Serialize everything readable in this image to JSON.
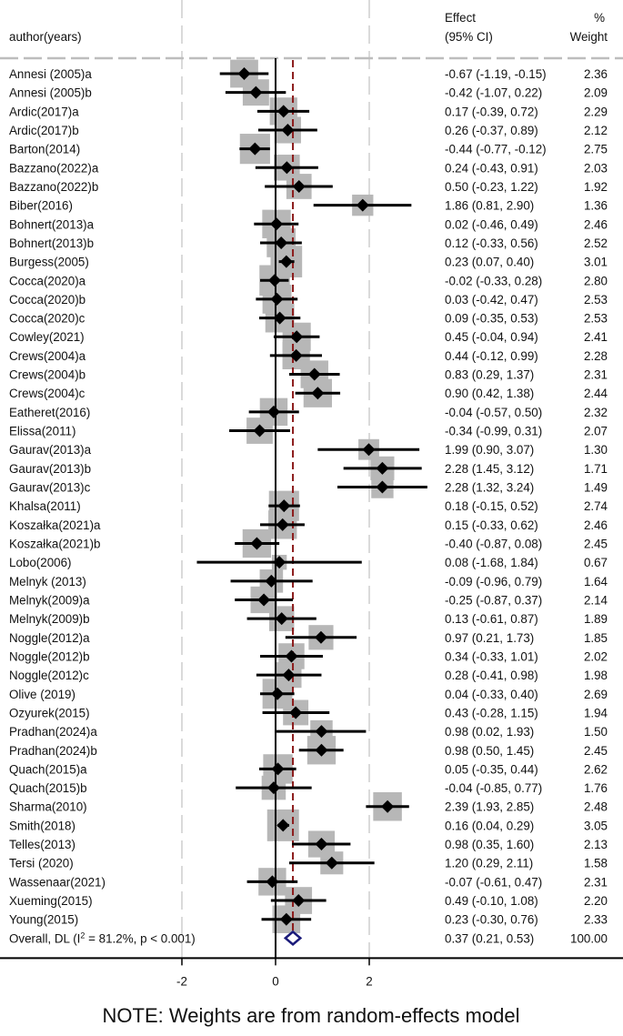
{
  "chart_data": {
    "type": "forest",
    "header": {
      "author": "author(years)",
      "effect": "Effect",
      "ci": "(95% CI)",
      "pct": "%",
      "weight": "Weight"
    },
    "studies": [
      {
        "author": "Annesi (2005)a",
        "est": -0.67,
        "lo": -1.19,
        "hi": -0.15,
        "ci_text": "-0.67 (-1.19, -0.15)",
        "weight": 2.36,
        "weight_text": "2.36"
      },
      {
        "author": "Annesi (2005)b",
        "est": -0.42,
        "lo": -1.07,
        "hi": 0.22,
        "ci_text": "-0.42 (-1.07, 0.22)",
        "weight": 2.09,
        "weight_text": "2.09"
      },
      {
        "author": "Ardic(2017)a",
        "est": 0.17,
        "lo": -0.39,
        "hi": 0.72,
        "ci_text": "0.17 (-0.39, 0.72)",
        "weight": 2.29,
        "weight_text": "2.29"
      },
      {
        "author": "Ardic(2017)b",
        "est": 0.26,
        "lo": -0.37,
        "hi": 0.89,
        "ci_text": "0.26 (-0.37, 0.89)",
        "weight": 2.12,
        "weight_text": "2.12"
      },
      {
        "author": "Barton(2014)",
        "est": -0.44,
        "lo": -0.77,
        "hi": -0.12,
        "ci_text": "-0.44 (-0.77, -0.12)",
        "weight": 2.75,
        "weight_text": "2.75"
      },
      {
        "author": "Bazzano(2022)a",
        "est": 0.24,
        "lo": -0.43,
        "hi": 0.91,
        "ci_text": "0.24 (-0.43, 0.91)",
        "weight": 2.03,
        "weight_text": "2.03"
      },
      {
        "author": "Bazzano(2022)b",
        "est": 0.5,
        "lo": -0.23,
        "hi": 1.22,
        "ci_text": "0.50 (-0.23, 1.22)",
        "weight": 1.92,
        "weight_text": "1.92"
      },
      {
        "author": "Biber(2016)",
        "est": 1.86,
        "lo": 0.81,
        "hi": 2.9,
        "ci_text": "1.86 (0.81, 2.90)",
        "weight": 1.36,
        "weight_text": "1.36"
      },
      {
        "author": "Bohnert(2013)a",
        "est": 0.02,
        "lo": -0.46,
        "hi": 0.49,
        "ci_text": "0.02 (-0.46, 0.49)",
        "weight": 2.46,
        "weight_text": "2.46"
      },
      {
        "author": "Bohnert(2013)b",
        "est": 0.12,
        "lo": -0.33,
        "hi": 0.56,
        "ci_text": "0.12 (-0.33, 0.56)",
        "weight": 2.52,
        "weight_text": "2.52"
      },
      {
        "author": "Burgess(2005)",
        "est": 0.23,
        "lo": 0.07,
        "hi": 0.4,
        "ci_text": "0.23 (0.07, 0.40)",
        "weight": 3.01,
        "weight_text": "3.01"
      },
      {
        "author": "Cocca(2020)a",
        "est": -0.02,
        "lo": -0.33,
        "hi": 0.28,
        "ci_text": "-0.02 (-0.33, 0.28)",
        "weight": 2.8,
        "weight_text": "2.80"
      },
      {
        "author": "Cocca(2020)b",
        "est": 0.03,
        "lo": -0.42,
        "hi": 0.47,
        "ci_text": "0.03 (-0.42, 0.47)",
        "weight": 2.53,
        "weight_text": "2.53"
      },
      {
        "author": "Cocca(2020)c",
        "est": 0.09,
        "lo": -0.35,
        "hi": 0.53,
        "ci_text": "0.09 (-0.35, 0.53)",
        "weight": 2.53,
        "weight_text": "2.53"
      },
      {
        "author": "Cowley(2021)",
        "est": 0.45,
        "lo": -0.04,
        "hi": 0.94,
        "ci_text": "0.45 (-0.04, 0.94)",
        "weight": 2.41,
        "weight_text": "2.41"
      },
      {
        "author": "Crews(2004)a",
        "est": 0.44,
        "lo": -0.12,
        "hi": 0.99,
        "ci_text": "0.44 (-0.12, 0.99)",
        "weight": 2.28,
        "weight_text": "2.28"
      },
      {
        "author": "Crews(2004)b",
        "est": 0.83,
        "lo": 0.29,
        "hi": 1.37,
        "ci_text": "0.83 (0.29, 1.37)",
        "weight": 2.31,
        "weight_text": "2.31"
      },
      {
        "author": "Crews(2004)c",
        "est": 0.9,
        "lo": 0.42,
        "hi": 1.38,
        "ci_text": "0.90 (0.42, 1.38)",
        "weight": 2.44,
        "weight_text": "2.44"
      },
      {
        "author": "Eatheret(2016)",
        "est": -0.04,
        "lo": -0.57,
        "hi": 0.5,
        "ci_text": "-0.04 (-0.57, 0.50)",
        "weight": 2.32,
        "weight_text": "2.32"
      },
      {
        "author": "Elissa(2011)",
        "est": -0.34,
        "lo": -0.99,
        "hi": 0.31,
        "ci_text": "-0.34 (-0.99, 0.31)",
        "weight": 2.07,
        "weight_text": "2.07"
      },
      {
        "author": "Gaurav(2013)a",
        "est": 1.99,
        "lo": 0.9,
        "hi": 3.07,
        "ci_text": "1.99 (0.90, 3.07)",
        "weight": 1.3,
        "weight_text": "1.30"
      },
      {
        "author": "Gaurav(2013)b",
        "est": 2.28,
        "lo": 1.45,
        "hi": 3.12,
        "ci_text": "2.28 (1.45, 3.12)",
        "weight": 1.71,
        "weight_text": "1.71"
      },
      {
        "author": "Gaurav(2013)c",
        "est": 2.28,
        "lo": 1.32,
        "hi": 3.24,
        "ci_text": "2.28 (1.32, 3.24)",
        "weight": 1.49,
        "weight_text": "1.49"
      },
      {
        "author": "Khalsa(2011)",
        "est": 0.18,
        "lo": -0.15,
        "hi": 0.52,
        "ci_text": "0.18 (-0.15, 0.52)",
        "weight": 2.74,
        "weight_text": "2.74"
      },
      {
        "author": "Koszałka(2021)a",
        "est": 0.15,
        "lo": -0.33,
        "hi": 0.62,
        "ci_text": "0.15 (-0.33, 0.62)",
        "weight": 2.46,
        "weight_text": "2.46"
      },
      {
        "author": "Koszałka(2021)b",
        "est": -0.4,
        "lo": -0.87,
        "hi": 0.08,
        "ci_text": "-0.40 (-0.87, 0.08)",
        "weight": 2.45,
        "weight_text": "2.45"
      },
      {
        "author": "Lobo(2006)",
        "est": 0.08,
        "lo": -1.68,
        "hi": 1.84,
        "ci_text": "0.08 (-1.68, 1.84)",
        "weight": 0.67,
        "weight_text": "0.67"
      },
      {
        "author": "Melnyk (2013)",
        "est": -0.09,
        "lo": -0.96,
        "hi": 0.79,
        "ci_text": "-0.09 (-0.96, 0.79)",
        "weight": 1.64,
        "weight_text": "1.64"
      },
      {
        "author": "Melnyk(2009)a",
        "est": -0.25,
        "lo": -0.87,
        "hi": 0.37,
        "ci_text": "-0.25 (-0.87, 0.37)",
        "weight": 2.14,
        "weight_text": "2.14"
      },
      {
        "author": "Melnyk(2009)b",
        "est": 0.13,
        "lo": -0.61,
        "hi": 0.87,
        "ci_text": "0.13 (-0.61, 0.87)",
        "weight": 1.89,
        "weight_text": "1.89"
      },
      {
        "author": "Noggle(2012)a",
        "est": 0.97,
        "lo": 0.21,
        "hi": 1.73,
        "ci_text": "0.97 (0.21, 1.73)",
        "weight": 1.85,
        "weight_text": "1.85"
      },
      {
        "author": "Noggle(2012)b",
        "est": 0.34,
        "lo": -0.33,
        "hi": 1.01,
        "ci_text": "0.34 (-0.33, 1.01)",
        "weight": 2.02,
        "weight_text": "2.02"
      },
      {
        "author": "Noggle(2012)c",
        "est": 0.28,
        "lo": -0.41,
        "hi": 0.98,
        "ci_text": "0.28 (-0.41, 0.98)",
        "weight": 1.98,
        "weight_text": "1.98"
      },
      {
        "author": "Olive (2019)",
        "est": 0.04,
        "lo": -0.33,
        "hi": 0.4,
        "ci_text": "0.04 (-0.33, 0.40)",
        "weight": 2.69,
        "weight_text": "2.69"
      },
      {
        "author": "Ozyurek(2015)",
        "est": 0.43,
        "lo": -0.28,
        "hi": 1.15,
        "ci_text": "0.43 (-0.28, 1.15)",
        "weight": 1.94,
        "weight_text": "1.94"
      },
      {
        "author": "Pradhan(2024)a",
        "est": 0.98,
        "lo": 0.02,
        "hi": 1.93,
        "ci_text": "0.98 (0.02, 1.93)",
        "weight": 1.5,
        "weight_text": "1.50"
      },
      {
        "author": "Pradhan(2024)b",
        "est": 0.98,
        "lo": 0.5,
        "hi": 1.45,
        "ci_text": "0.98 (0.50, 1.45)",
        "weight": 2.45,
        "weight_text": "2.45"
      },
      {
        "author": "Quach(2015)a",
        "est": 0.05,
        "lo": -0.35,
        "hi": 0.44,
        "ci_text": "0.05 (-0.35, 0.44)",
        "weight": 2.62,
        "weight_text": "2.62"
      },
      {
        "author": "Quach(2015)b",
        "est": -0.04,
        "lo": -0.85,
        "hi": 0.77,
        "ci_text": "-0.04 (-0.85, 0.77)",
        "weight": 1.76,
        "weight_text": "1.76"
      },
      {
        "author": "Sharma(2010)",
        "est": 2.39,
        "lo": 1.93,
        "hi": 2.85,
        "ci_text": "2.39 (1.93, 2.85)",
        "weight": 2.48,
        "weight_text": "2.48"
      },
      {
        "author": "Smith(2018)",
        "est": 0.16,
        "lo": 0.04,
        "hi": 0.29,
        "ci_text": "0.16 (0.04, 0.29)",
        "weight": 3.05,
        "weight_text": "3.05"
      },
      {
        "author": "Telles(2013)",
        "est": 0.98,
        "lo": 0.35,
        "hi": 1.6,
        "ci_text": "0.98 (0.35, 1.60)",
        "weight": 2.13,
        "weight_text": "2.13"
      },
      {
        "author": "Tersi (2020)",
        "est": 1.2,
        "lo": 0.29,
        "hi": 2.11,
        "ci_text": "1.20 (0.29, 2.11)",
        "weight": 1.58,
        "weight_text": "1.58"
      },
      {
        "author": "Wassenaar(2021)",
        "est": -0.07,
        "lo": -0.61,
        "hi": 0.47,
        "ci_text": "-0.07 (-0.61, 0.47)",
        "weight": 2.31,
        "weight_text": "2.31"
      },
      {
        "author": "Xueming(2015)",
        "est": 0.49,
        "lo": -0.1,
        "hi": 1.08,
        "ci_text": "0.49 (-0.10, 1.08)",
        "weight": 2.2,
        "weight_text": "2.20"
      },
      {
        "author": "Young(2015)",
        "est": 0.23,
        "lo": -0.3,
        "hi": 0.76,
        "ci_text": "0.23 (-0.30, 0.76)",
        "weight": 2.33,
        "weight_text": "2.33"
      }
    ],
    "overall": {
      "label_prefix": "Overall, DL (I",
      "label_sup": "2",
      "label_suffix": " = 81.2%, p < 0.001)",
      "est": 0.37,
      "lo": 0.21,
      "hi": 0.53,
      "ci_text": "0.37 (0.21, 0.53)",
      "weight_text": "100.00"
    },
    "xaxis": {
      "ticks": [
        -2,
        0,
        2
      ],
      "tick_labels": [
        "-2",
        "0",
        "2"
      ],
      "range": [
        -5.9,
        5.6
      ]
    },
    "null_line": 0,
    "overall_line": 0.37,
    "colors": {
      "text": "#111111",
      "marker": "#000000",
      "weight_box": "#b7b7b7",
      "overall_line": "#8b1a1a",
      "diamond": "#1a1a7a",
      "divider": "#bdbdbd",
      "grid": "#dadada"
    },
    "note": "NOTE: Weights are from random-effects model"
  }
}
